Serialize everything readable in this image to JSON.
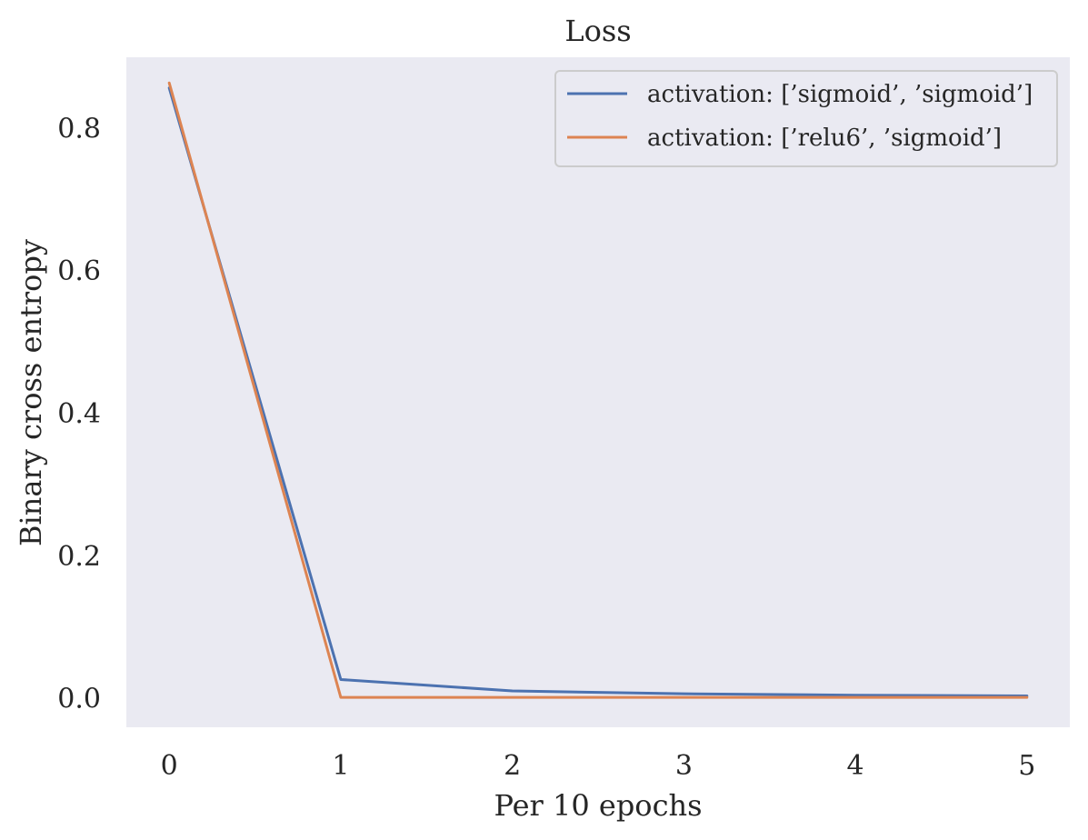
{
  "chart_data": {
    "type": "line",
    "title": "Loss",
    "xlabel": "Per 10 epochs",
    "ylabel": "Binary cross entropy",
    "x": [
      0,
      1,
      2,
      3,
      4,
      5
    ],
    "xticks": [
      "0",
      "1",
      "2",
      "3",
      "4",
      "5"
    ],
    "yticks": [
      "0.0",
      "0.2",
      "0.4",
      "0.6",
      "0.8"
    ],
    "xlim": [
      -0.25,
      5.25
    ],
    "ylim": [
      -0.04,
      0.9
    ],
    "grid": false,
    "legend_position": "top-right",
    "background": "#eaeaf2",
    "series": [
      {
        "name": "activation: [’sigmoid’, ’sigmoid’]",
        "color": "#4c72b0",
        "values": [
          0.857,
          0.027,
          0.011,
          0.007,
          0.005,
          0.004
        ]
      },
      {
        "name": "activation: [’relu6’, ’sigmoid’]",
        "color": "#dd8452",
        "values": [
          0.864,
          0.002,
          0.002,
          0.002,
          0.002,
          0.002
        ]
      }
    ]
  }
}
